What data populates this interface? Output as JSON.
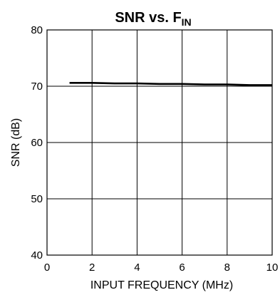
{
  "chart_data": {
    "type": "line",
    "title": {
      "main": "SNR vs. F",
      "sub": "IN"
    },
    "xlabel": "INPUT FREQUENCY (MHz)",
    "ylabel": "SNR (dB)",
    "xlim": [
      0,
      10
    ],
    "ylim": [
      40,
      80
    ],
    "xticks": [
      0,
      2,
      4,
      6,
      8,
      10
    ],
    "yticks": [
      40,
      50,
      60,
      70,
      80
    ],
    "grid": true,
    "series": [
      {
        "color": "#000000",
        "x": [
          1,
          2,
          3,
          4,
          5,
          6,
          7,
          8,
          9,
          10
        ],
        "y": [
          70.6,
          70.6,
          70.5,
          70.5,
          70.4,
          70.4,
          70.3,
          70.3,
          70.2,
          70.2
        ]
      }
    ]
  }
}
